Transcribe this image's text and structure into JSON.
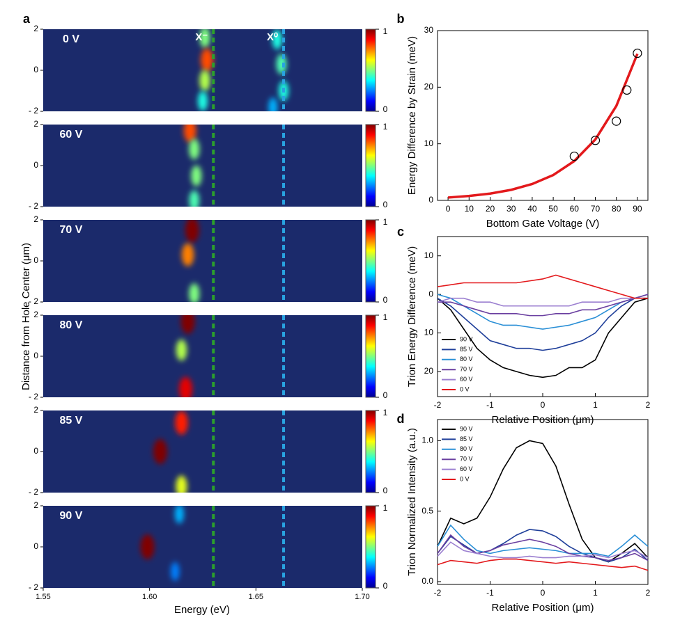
{
  "chart_data": [
    {
      "type": "heatmap",
      "panel_label": "a",
      "x_label": "Energy (eV)",
      "y_label": "Distance from Hole Center (μm)",
      "xlim": [
        1.55,
        1.7
      ],
      "xticks": [
        1.55,
        {
          "value": 1.6,
          "label": "1.60"
        },
        1.65,
        {
          "value": 1.7,
          "label": "1.70"
        }
      ],
      "ylim": [
        -2,
        2
      ],
      "yticks": [
        {
          "value": -2,
          "label": "- 2"
        },
        0,
        2
      ],
      "colorbar_ticks": [
        0,
        1
      ],
      "colormap": "jet",
      "background": "#1b2a6b",
      "annotations": [
        {
          "text": "X⁻",
          "x": 1.63,
          "color": "#2ca02c"
        },
        {
          "text": "X⁰",
          "x": 1.663,
          "color": "#29a3e0"
        }
      ],
      "panels": [
        {
          "label": "0 V",
          "x": [
            1.626,
            1.627,
            1.626,
            1.625,
            1.66,
            1.662,
            1.663,
            1.658
          ],
          "y": [
            1.6,
            0.5,
            -0.5,
            -1.5,
            1.5,
            0.3,
            -1,
            -1.8
          ],
          "values": [
            0.5,
            0.8,
            0.55,
            0.4,
            0.4,
            0.45,
            0.4,
            0.3
          ]
        },
        {
          "label": "60 V",
          "x": [
            1.619,
            1.621,
            1.622,
            1.621
          ],
          "y": [
            1.7,
            0.8,
            -0.5,
            -1.7
          ],
          "values": [
            0.8,
            0.5,
            0.5,
            0.45
          ]
        },
        {
          "label": "70 V",
          "x": [
            1.62,
            1.618,
            1.621
          ],
          "y": [
            1.5,
            0.3,
            -1.6
          ],
          "values": [
            1.0,
            0.75,
            0.5
          ]
        },
        {
          "label": "80 V",
          "x": [
            1.618,
            1.615,
            1.617
          ],
          "y": [
            1.7,
            0.3,
            -1.6
          ],
          "values": [
            1.0,
            0.55,
            0.9
          ]
        },
        {
          "label": "85 V",
          "x": [
            1.615,
            1.605,
            1.615
          ],
          "y": [
            1.4,
            0,
            -1.7
          ],
          "values": [
            0.85,
            1.0,
            0.6
          ]
        },
        {
          "label": "90 V",
          "x": [
            1.614,
            1.599,
            1.612
          ],
          "y": [
            1.6,
            0,
            -1.2
          ],
          "values": [
            0.3,
            1.0,
            0.25
          ]
        }
      ]
    },
    {
      "type": "scatter",
      "panel_label": "b",
      "x_label": "Bottom Gate Voltage (V)",
      "y_label": "Energy Difference by Strain (meV)",
      "xlim": [
        -5,
        95
      ],
      "xticks": [
        0,
        10,
        20,
        30,
        40,
        50,
        60,
        70,
        80,
        90
      ],
      "ylim": [
        0,
        30
      ],
      "yticks": [
        0,
        10,
        20,
        30
      ],
      "points": {
        "x": [
          60,
          70,
          80,
          85,
          90
        ],
        "values": [
          7.8,
          10.6,
          14,
          19.5,
          26
        ],
        "color": "#000000"
      },
      "fit": {
        "x": [
          0,
          10,
          20,
          30,
          40,
          50,
          60,
          70,
          80,
          90
        ],
        "values": [
          0.5,
          0.78,
          1.2,
          1.86,
          2.89,
          4.48,
          6.95,
          10.76,
          16.7,
          25.9
        ],
        "color": "#e3191c"
      }
    },
    {
      "type": "line",
      "panel_label": "c",
      "x_label": "Relative Position (μm)",
      "y_label": "Trion Energy Difference (meV)",
      "xlim": [
        -2,
        2
      ],
      "xticks": [
        -2,
        -1,
        0,
        1,
        2
      ],
      "ylim": [
        -15,
        26.5
      ],
      "y_inverted": true,
      "yticks": [
        {
          "value": -10,
          "label": "10"
        },
        0,
        10,
        20
      ],
      "legend": "lower left",
      "x": [
        -2,
        -1.75,
        -1.5,
        -1.25,
        -1,
        -0.75,
        -0.5,
        -0.25,
        0,
        0.25,
        0.5,
        0.75,
        1,
        1.25,
        1.5,
        1.75,
        2
      ],
      "series": [
        {
          "name": "90 V",
          "color": "#000000",
          "values": [
            1,
            4,
            9,
            14,
            17,
            19,
            20,
            21,
            21.5,
            21,
            19,
            19,
            17,
            10,
            6,
            2,
            1
          ]
        },
        {
          "name": "85 V",
          "color": "#1f3f9a",
          "values": [
            1,
            3,
            6,
            9,
            12,
            13,
            14,
            14,
            14.5,
            14,
            13,
            12,
            10,
            6,
            3,
            1,
            1
          ]
        },
        {
          "name": "80 V",
          "color": "#2a8fd6",
          "values": [
            0,
            1,
            3,
            5,
            7,
            8,
            8,
            8.5,
            9,
            8.5,
            8,
            7,
            6,
            4,
            2,
            1,
            0
          ]
        },
        {
          "name": "70 V",
          "color": "#6a3fa0",
          "values": [
            2,
            2,
            3,
            4,
            5,
            5,
            5,
            5.5,
            5.5,
            5,
            5,
            4,
            4,
            3,
            2,
            1,
            0
          ]
        },
        {
          "name": "60 V",
          "color": "#9b7fd0",
          "values": [
            2,
            1,
            1,
            2,
            2,
            3,
            3,
            3,
            3,
            3,
            3,
            2,
            2,
            2,
            1,
            1,
            1
          ]
        },
        {
          "name": "0 V",
          "color": "#e3191c",
          "values": [
            -2,
            -2.5,
            -3,
            -3,
            -3,
            -3,
            -3,
            -3.5,
            -4,
            -5,
            -4,
            -3,
            -2,
            -1,
            0,
            1,
            1
          ]
        }
      ]
    },
    {
      "type": "line",
      "panel_label": "d",
      "x_label": "Relative Position (μm)",
      "y_label": "Trion Normalized Intensity (a.u.)",
      "xlim": [
        -2,
        2
      ],
      "xticks": [
        -2,
        -1,
        0,
        1,
        2
      ],
      "ylim": [
        -0.02,
        1.15
      ],
      "yticks": [
        {
          "value": 0,
          "label": "0.0"
        },
        0.5,
        {
          "value": 1,
          "label": "1.0"
        }
      ],
      "legend": "upper left",
      "x": [
        -2,
        -1.75,
        -1.5,
        -1.25,
        -1,
        -0.75,
        -0.5,
        -0.25,
        0,
        0.25,
        0.5,
        0.75,
        1,
        1.25,
        1.5,
        1.75,
        2
      ],
      "series": [
        {
          "name": "90 V",
          "color": "#000000",
          "values": [
            0.25,
            0.45,
            0.41,
            0.45,
            0.6,
            0.8,
            0.95,
            1.0,
            0.98,
            0.82,
            0.55,
            0.3,
            0.17,
            0.14,
            0.2,
            0.27,
            0.17
          ]
        },
        {
          "name": "85 V",
          "color": "#1f3f9a",
          "values": [
            0.2,
            0.32,
            0.26,
            0.2,
            0.22,
            0.27,
            0.33,
            0.37,
            0.36,
            0.32,
            0.25,
            0.2,
            0.17,
            0.14,
            0.17,
            0.23,
            0.15
          ]
        },
        {
          "name": "80 V",
          "color": "#2a8fd6",
          "values": [
            0.25,
            0.4,
            0.3,
            0.22,
            0.2,
            0.22,
            0.23,
            0.24,
            0.23,
            0.22,
            0.2,
            0.2,
            0.2,
            0.18,
            0.25,
            0.33,
            0.25
          ]
        },
        {
          "name": "70 V",
          "color": "#6a3fa0",
          "values": [
            0.2,
            0.33,
            0.25,
            0.2,
            0.22,
            0.26,
            0.28,
            0.3,
            0.28,
            0.25,
            0.2,
            0.18,
            0.17,
            0.15,
            0.17,
            0.2,
            0.15
          ]
        },
        {
          "name": "60 V",
          "color": "#9b7fd0",
          "values": [
            0.18,
            0.28,
            0.22,
            0.2,
            0.18,
            0.17,
            0.17,
            0.18,
            0.17,
            0.17,
            0.18,
            0.18,
            0.19,
            0.17,
            0.2,
            0.22,
            0.17
          ]
        },
        {
          "name": "0 V",
          "color": "#e3191c",
          "values": [
            0.12,
            0.15,
            0.14,
            0.13,
            0.15,
            0.16,
            0.16,
            0.15,
            0.14,
            0.13,
            0.14,
            0.13,
            0.12,
            0.11,
            0.1,
            0.11,
            0.08
          ]
        }
      ]
    }
  ]
}
